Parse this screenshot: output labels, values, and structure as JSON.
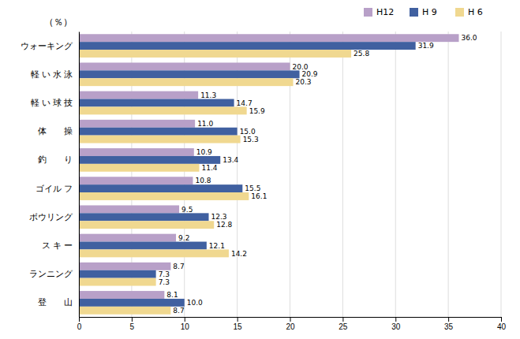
{
  "chart_data": {
    "type": "bar",
    "orientation": "horizontal",
    "xlabel": "（％）",
    "categories": [
      "ウォーキング",
      "軽 い 水 泳",
      "軽 い 球 技",
      "体　　操",
      "釣　　り",
      "ゴイル フ",
      "ボウリング",
      "ス キ ー",
      "ランニング",
      "登　　山"
    ],
    "series": [
      {
        "name": "H12",
        "color": "#b8a0c8",
        "values": [
          36.0,
          20.0,
          11.3,
          11.0,
          10.9,
          10.8,
          9.5,
          9.2,
          8.7,
          8.1
        ],
        "value_labels": [
          "36.0",
          "20.0",
          "11.3",
          "11.0",
          "10.9",
          "10.8",
          "9.5",
          "9.2",
          "8.7",
          "8.1"
        ]
      },
      {
        "name": "H 9",
        "color": "#4060a0",
        "values": [
          31.9,
          20.9,
          14.7,
          15.0,
          13.4,
          15.5,
          12.3,
          12.1,
          7.3,
          10.0
        ],
        "value_labels": [
          "31.9",
          "20.9",
          "14.7",
          "15.0",
          "13.4",
          "15.5",
          "12.3",
          "12.1",
          "7.3",
          "10.0"
        ]
      },
      {
        "name": "H 6",
        "color": "#f0d890",
        "values": [
          25.8,
          20.3,
          15.9,
          15.3,
          11.4,
          16.1,
          12.8,
          14.2,
          7.3,
          8.7
        ],
        "value_labels": [
          "25.8",
          "20.3",
          "15.9",
          "15.3",
          "11.4",
          "16.1",
          "12.8",
          "14.2",
          "7.3",
          "8.7"
        ]
      }
    ],
    "xlim": [
      0,
      40
    ],
    "xticks": [
      0,
      5,
      10,
      15,
      20,
      25,
      30,
      35,
      40
    ],
    "grid": true,
    "legend": "upper right",
    "data_labels": true
  }
}
